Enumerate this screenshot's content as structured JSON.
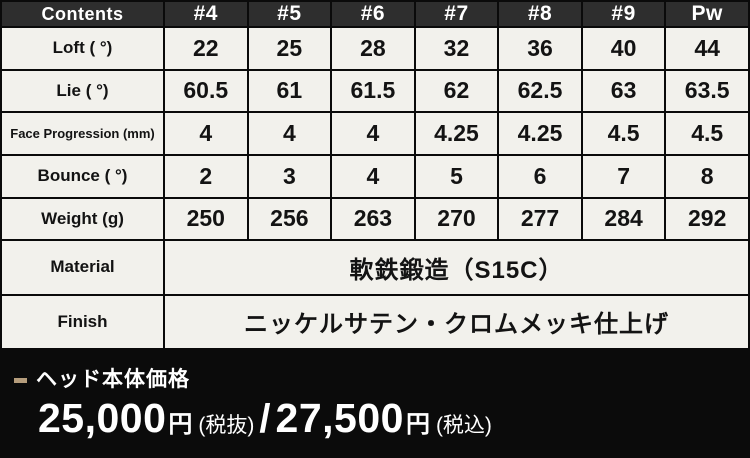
{
  "table": {
    "header": [
      "Contents",
      "#4",
      "#5",
      "#6",
      "#7",
      "#8",
      "#9",
      "Pw"
    ],
    "rows": [
      {
        "label": "Loft ( °)",
        "values": [
          "22",
          "25",
          "28",
          "32",
          "36",
          "40",
          "44"
        ]
      },
      {
        "label": "Lie ( °)",
        "values": [
          "60.5",
          "61",
          "61.5",
          "62",
          "62.5",
          "63",
          "63.5"
        ]
      },
      {
        "label": "Face Progression (mm)",
        "values": [
          "4",
          "4",
          "4",
          "4.25",
          "4.25",
          "4.5",
          "4.5"
        ]
      },
      {
        "label": "Bounce ( °)",
        "values": [
          "2",
          "3",
          "4",
          "5",
          "6",
          "7",
          "8"
        ]
      },
      {
        "label": "Weight (g)",
        "values": [
          "250",
          "256",
          "263",
          "270",
          "277",
          "284",
          "292"
        ]
      }
    ],
    "merged": [
      {
        "label": "Material",
        "value": "軟鉄鍛造（S15C）"
      },
      {
        "label": "Finish",
        "value": "ニッケルサテン・クロムメッキ仕上げ"
      }
    ]
  },
  "price": {
    "heading": "ヘッド本体価格",
    "amount_excl": "25,000",
    "yen1": "円",
    "tax_excl_label": "(税抜)",
    "separator": "/",
    "amount_incl": "27,500",
    "yen2": "円",
    "tax_incl_label": "(税込)"
  },
  "colors": {
    "header_bg": "#2e2e2e",
    "header_text": "#ffffff",
    "cell_bg": "#f2f1ec",
    "cell_text": "#131313",
    "border": "#0a0a0a",
    "footer_bg": "#0b0b0b",
    "footer_text": "#ffffff",
    "accent_dash": "#b59d7c"
  }
}
